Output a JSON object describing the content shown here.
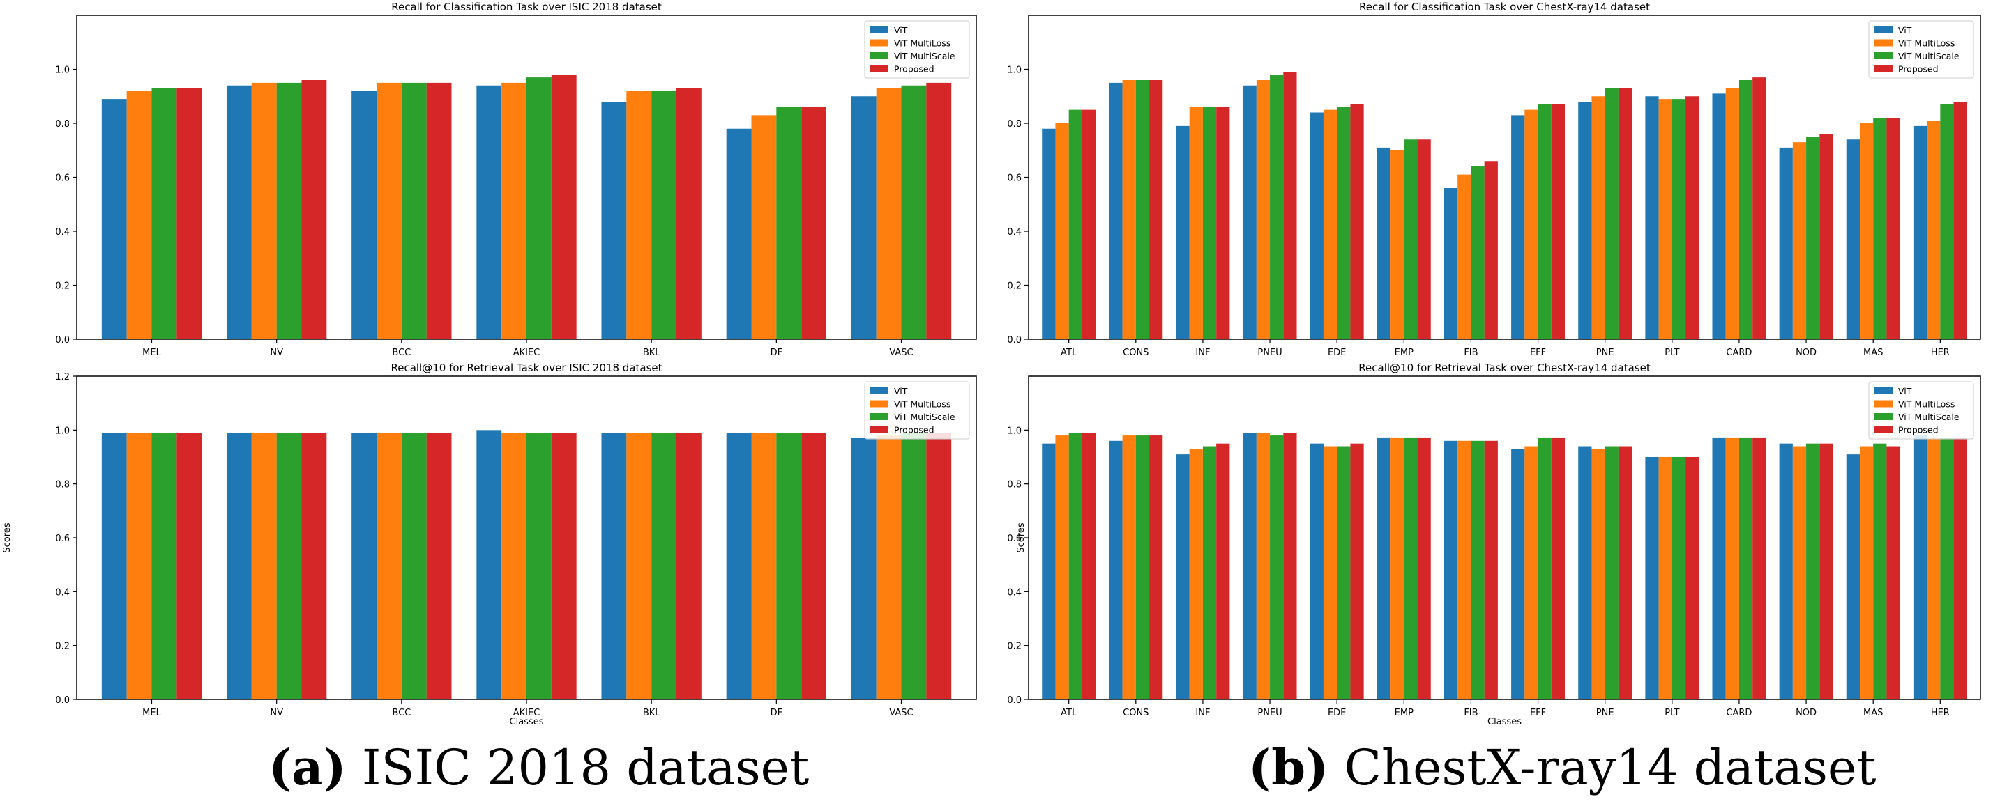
{
  "colors": {
    "vit": "#1f77b4",
    "multiloss": "#ff7f0e",
    "multiscale": "#2ca02c",
    "proposed": "#d62728"
  },
  "captions": {
    "a": {
      "tag": "(a)",
      "text": " ISIC 2018 dataset"
    },
    "b": {
      "tag": "(b)",
      "text": " ChestX-ray14 dataset"
    }
  },
  "chart_data": [
    {
      "type": "bar",
      "title": "Recall for Classification Task over ISIC 2018 dataset",
      "xlabel": "",
      "ylabel": "",
      "ylim": [
        0,
        1.2
      ],
      "yticks": [
        "0.0",
        "0.2",
        "0.4",
        "0.6",
        "0.8",
        "1.0"
      ],
      "legend": "top-right",
      "categories": [
        "MEL",
        "NV",
        "BCC",
        "AKIEC",
        "BKL",
        "DF",
        "VASC"
      ],
      "series": [
        {
          "name": "ViT",
          "values": [
            0.89,
            0.94,
            0.92,
            0.94,
            0.88,
            0.78,
            0.9
          ]
        },
        {
          "name": "ViT MultiLoss",
          "values": [
            0.92,
            0.95,
            0.95,
            0.95,
            0.92,
            0.83,
            0.93
          ]
        },
        {
          "name": "ViT MultiScale",
          "values": [
            0.93,
            0.95,
            0.95,
            0.97,
            0.92,
            0.86,
            0.94
          ]
        },
        {
          "name": "Proposed",
          "values": [
            0.93,
            0.96,
            0.95,
            0.98,
            0.93,
            0.86,
            0.95
          ]
        }
      ]
    },
    {
      "type": "bar",
      "title": "Recall for Classification Task over ChestX-ray14 dataset",
      "xlabel": "",
      "ylabel": "",
      "ylim": [
        0,
        1.2
      ],
      "yticks": [
        "0.0",
        "0.2",
        "0.4",
        "0.6",
        "0.8",
        "1.0"
      ],
      "legend": "top-right",
      "categories": [
        "ATL",
        "CONS",
        "INF",
        "PNEU",
        "EDE",
        "EMP",
        "FIB",
        "EFF",
        "PNE",
        "PLT",
        "CARD",
        "NOD",
        "MAS",
        "HER"
      ],
      "series": [
        {
          "name": "ViT",
          "values": [
            0.78,
            0.95,
            0.79,
            0.94,
            0.84,
            0.71,
            0.56,
            0.83,
            0.88,
            0.9,
            0.91,
            0.71,
            0.74,
            0.79
          ]
        },
        {
          "name": "ViT MultiLoss",
          "values": [
            0.8,
            0.96,
            0.86,
            0.96,
            0.85,
            0.7,
            0.61,
            0.85,
            0.9,
            0.89,
            0.93,
            0.73,
            0.8,
            0.81
          ]
        },
        {
          "name": "ViT MultiScale",
          "values": [
            0.85,
            0.96,
            0.86,
            0.98,
            0.86,
            0.74,
            0.64,
            0.87,
            0.93,
            0.89,
            0.96,
            0.75,
            0.82,
            0.87
          ]
        },
        {
          "name": "Proposed",
          "values": [
            0.85,
            0.96,
            0.86,
            0.99,
            0.87,
            0.74,
            0.66,
            0.87,
            0.93,
            0.9,
            0.97,
            0.76,
            0.82,
            0.88
          ]
        }
      ]
    },
    {
      "type": "bar",
      "title": "Recall@10 for Retrieval Task over ISIC 2018 dataset",
      "xlabel": "Classes",
      "ylabel": "Scores",
      "ylim": [
        0,
        1.2
      ],
      "yticks": [
        "0.0",
        "0.2",
        "0.4",
        "0.6",
        "0.8",
        "1.0",
        "1.2"
      ],
      "legend": "top-right",
      "categories": [
        "MEL",
        "NV",
        "BCC",
        "AKIEC",
        "BKL",
        "DF",
        "VASC"
      ],
      "series": [
        {
          "name": "ViT",
          "values": [
            0.99,
            0.99,
            0.99,
            1.0,
            0.99,
            0.99,
            0.97
          ]
        },
        {
          "name": "ViT MultiLoss",
          "values": [
            0.99,
            0.99,
            0.99,
            0.99,
            0.99,
            0.99,
            0.98
          ]
        },
        {
          "name": "ViT MultiScale",
          "values": [
            0.99,
            0.99,
            0.99,
            0.99,
            0.99,
            0.99,
            0.99
          ]
        },
        {
          "name": "Proposed",
          "values": [
            0.99,
            0.99,
            0.99,
            0.99,
            0.99,
            0.99,
            0.99
          ]
        }
      ]
    },
    {
      "type": "bar",
      "title": "Recall@10 for Retrieval Task over ChestX-ray14 dataset",
      "xlabel": "Classes",
      "ylabel": "Scores",
      "ylim": [
        0,
        1.2
      ],
      "yticks": [
        "0.0",
        "0.2",
        "0.4",
        "0.6",
        "0.8",
        "1.0"
      ],
      "legend": "top-right",
      "categories": [
        "ATL",
        "CONS",
        "INF",
        "PNEU",
        "EDE",
        "EMP",
        "FIB",
        "EFF",
        "PNE",
        "PLT",
        "CARD",
        "NOD",
        "MAS",
        "HER"
      ],
      "series": [
        {
          "name": "ViT",
          "values": [
            0.95,
            0.96,
            0.91,
            0.99,
            0.95,
            0.97,
            0.96,
            0.93,
            0.94,
            0.9,
            0.97,
            0.95,
            0.91,
            0.98
          ]
        },
        {
          "name": "ViT MultiLoss",
          "values": [
            0.98,
            0.98,
            0.93,
            0.99,
            0.94,
            0.97,
            0.96,
            0.94,
            0.93,
            0.9,
            0.97,
            0.94,
            0.94,
            0.97
          ]
        },
        {
          "name": "ViT MultiScale",
          "values": [
            0.99,
            0.98,
            0.94,
            0.98,
            0.94,
            0.97,
            0.96,
            0.97,
            0.94,
            0.9,
            0.97,
            0.95,
            0.95,
            0.97
          ]
        },
        {
          "name": "Proposed",
          "values": [
            0.99,
            0.98,
            0.95,
            0.99,
            0.95,
            0.97,
            0.96,
            0.97,
            0.94,
            0.9,
            0.97,
            0.95,
            0.94,
            0.97
          ]
        }
      ]
    }
  ]
}
